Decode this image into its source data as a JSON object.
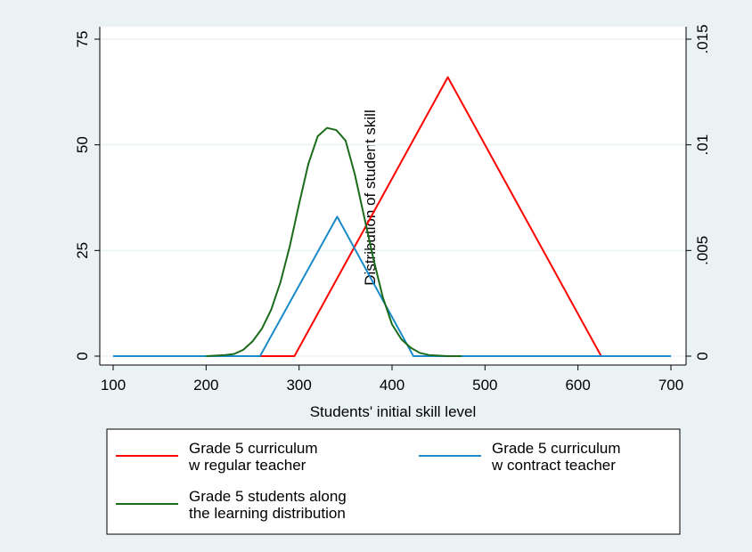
{
  "chart_data": {
    "type": "line",
    "x_label": "Students' initial skill level",
    "y2_label": "Distribution of student skill",
    "xlim": [
      100,
      700
    ],
    "xticks": [
      100,
      200,
      300,
      400,
      500,
      600,
      700
    ],
    "ylim": [
      0,
      75
    ],
    "yticks": [
      0,
      25,
      50,
      75
    ],
    "y2lim": [
      0,
      0.015
    ],
    "y2ticks": [
      0,
      {
        "value": 0.005,
        "label": ".005"
      },
      {
        "value": 0.01,
        "label": ".01"
      },
      {
        "value": 0.015,
        "label": ".015"
      }
    ],
    "grid": true,
    "series": [
      {
        "name": "Grade 5 curriculum\nw regular teacher",
        "color": "#ff0000",
        "x": [
          100,
          295,
          460,
          625,
          700
        ],
        "values": [
          0,
          0,
          66,
          0,
          0
        ]
      },
      {
        "name": "Grade 5 curriculum\nw contract teacher",
        "color": "#1a8ac8",
        "x": [
          100,
          258,
          341,
          423,
          700
        ],
        "values": [
          0,
          0,
          33,
          0,
          0
        ]
      },
      {
        "name": "Grade 5 students along\nthe learning distribution",
        "color": "#1a6b1a",
        "axis": "y2",
        "x": [
          200,
          220,
          230,
          240,
          250,
          260,
          270,
          280,
          290,
          300,
          310,
          320,
          330,
          340,
          350,
          360,
          370,
          380,
          390,
          400,
          410,
          420,
          430,
          440,
          460,
          475
        ],
        "values": [
          0,
          5e-05,
          0.0001,
          0.0003,
          0.0007,
          0.0013,
          0.0022,
          0.0035,
          0.0052,
          0.0072,
          0.0091,
          0.0104,
          0.0108,
          0.0107,
          0.0102,
          0.0086,
          0.0066,
          0.0046,
          0.0028,
          0.0015,
          0.0008,
          0.0004,
          0.00015,
          5e-05,
          0,
          0
        ]
      }
    ]
  }
}
